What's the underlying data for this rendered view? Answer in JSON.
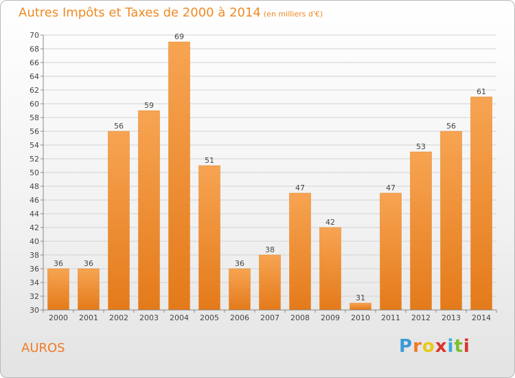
{
  "chart_data": {
    "type": "bar",
    "title": "Autres Impôts et Taxes de 2000 à 2014",
    "subtitle": "(en milliers d'€)",
    "categories": [
      "2000",
      "2001",
      "2002",
      "2003",
      "2004",
      "2005",
      "2006",
      "2007",
      "2008",
      "2009",
      "2010",
      "2011",
      "2012",
      "2013",
      "2014"
    ],
    "values": [
      36,
      36,
      56,
      59,
      69,
      51,
      36,
      38,
      47,
      42,
      31,
      47,
      53,
      56,
      61
    ],
    "ylim": [
      30,
      70
    ],
    "yticks": [
      "30",
      "32",
      "34",
      "36",
      "38",
      "40",
      "42",
      "44",
      "46",
      "48",
      "50",
      "52",
      "54",
      "56",
      "58",
      "60",
      "62",
      "64",
      "66",
      "68",
      "70"
    ],
    "grid": true,
    "bar_color": "#f0882a"
  },
  "location_label": "AUROS",
  "logo": {
    "text": "Proxiti",
    "letters": [
      "P",
      "r",
      "o",
      "x",
      "i",
      "t",
      "i"
    ],
    "colors": [
      "#3a9ad9",
      "#f07a25",
      "#e8c91c",
      "#d9342b",
      "#3aa8d9",
      "#7cbf2e",
      "#d9342b"
    ]
  }
}
